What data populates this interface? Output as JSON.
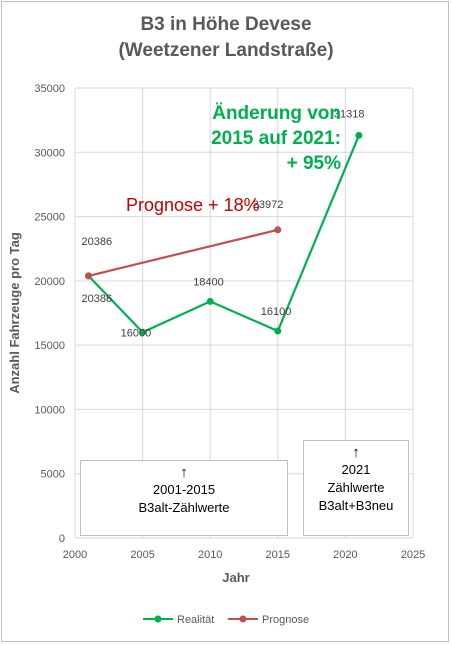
{
  "chart_data": {
    "type": "line",
    "title_line1": "B3 in Höhe Devese",
    "title_line2": "(Weetzener Landstraße)",
    "xlabel": "Jahr",
    "ylabel": "Anzahl Fahrzeuge pro Tag",
    "xlim": [
      2000,
      2025
    ],
    "ylim": [
      0,
      35000
    ],
    "x_ticks": [
      "2000",
      "2005",
      "2010",
      "2015",
      "2020",
      "2025"
    ],
    "y_ticks": [
      "0",
      "5000",
      "10000",
      "15000",
      "20000",
      "25000",
      "30000",
      "35000"
    ],
    "grid": true,
    "legend_position": "bottom",
    "series": [
      {
        "name": "Realität",
        "color": "#00b050",
        "points": [
          {
            "x": 2001,
            "y": 20386,
            "label": "20386"
          },
          {
            "x": 2005,
            "y": 16000,
            "label": "16000"
          },
          {
            "x": 2010,
            "y": 18400,
            "label": "18400"
          },
          {
            "x": 2015,
            "y": 16100,
            "label": "16100"
          },
          {
            "x": 2021,
            "y": 31318,
            "label": "31318"
          }
        ]
      },
      {
        "name": "Prognose",
        "color": "#c0504d",
        "points": [
          {
            "x": 2001,
            "y": 20386,
            "label": "20386"
          },
          {
            "x": 2015,
            "y": 23972,
            "label": "23972"
          }
        ]
      }
    ],
    "annotations": {
      "prognose": "Prognose  + 18%",
      "change_line1": "Änderung von",
      "change_line2": "2015 auf 2021:",
      "change_line3": "+ 95%"
    },
    "boxes": {
      "left_arrow": "↑",
      "left_line1": "2001-2015",
      "left_line2": "B3alt-Zählwerte",
      "right_arrow": "↑",
      "right_line1": "2021",
      "right_line2": "Zählwerte",
      "right_line3": "B3alt+B3neu"
    }
  }
}
